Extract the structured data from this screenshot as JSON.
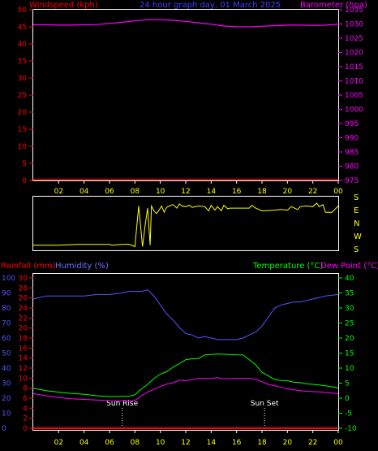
{
  "header": {
    "windspeed_label": "Windspeed (kph)",
    "title": "24 hour graph day, 01 March 2025",
    "barometer_label": "Barometer (hpa)"
  },
  "lower_header": {
    "rainfall_label": "Rainfall (mm)",
    "humidity_label": "Humidity (%)",
    "temperature_label": "Temperature (°C)",
    "dewpoint_label": "Dew Point (°C)"
  },
  "colors": {
    "background": "#000000",
    "frame": "#ffffff",
    "windspeed": "#ff0000",
    "barometer": "#ff00ff",
    "wind_direction": "#ffff00",
    "rainfall": "#ff0000",
    "humidity": "#5555ff",
    "temperature": "#00ff00",
    "dewpoint": "#ff00ff",
    "hour_labels": "#ffff00",
    "markers": "#ffffff"
  },
  "chart_data": [
    {
      "id": "wind-baro",
      "type": "line",
      "xlabel": "",
      "x_ticks": [
        "02",
        "04",
        "06",
        "08",
        "10",
        "12",
        "14",
        "16",
        "18",
        "20",
        "22",
        "00"
      ],
      "xlim_hours": [
        0,
        24
      ],
      "left_axis": {
        "label": "Windspeed (kph)",
        "ylim": [
          0,
          50
        ],
        "ticks": [
          0,
          5,
          10,
          15,
          20,
          25,
          30,
          35,
          40,
          45,
          50
        ]
      },
      "right_axis": {
        "label": "Barometer (hpa)",
        "ylim": [
          975,
          1035
        ],
        "ticks": [
          975,
          980,
          985,
          990,
          995,
          1000,
          1005,
          1010,
          1015,
          1020,
          1025,
          1030,
          1035
        ]
      },
      "series": [
        {
          "name": "Windspeed (kph)",
          "axis": "left",
          "x": [
            0,
            24
          ],
          "values": [
            0,
            0
          ]
        },
        {
          "name": "Barometer (hpa)",
          "axis": "right",
          "x": [
            0,
            1,
            2,
            3,
            4,
            5,
            6,
            7,
            8,
            9,
            10,
            11,
            12,
            13,
            14,
            15,
            16,
            17,
            18,
            19,
            20,
            21,
            22,
            23,
            24
          ],
          "values": [
            1029.7,
            1029.7,
            1029.6,
            1029.6,
            1029.7,
            1029.8,
            1030.2,
            1030.6,
            1031.1,
            1031.5,
            1031.5,
            1031.3,
            1030.9,
            1030.4,
            1029.9,
            1029.3,
            1029.0,
            1029.0,
            1029.2,
            1029.4,
            1029.6,
            1029.6,
            1029.5,
            1029.6,
            1029.9
          ]
        }
      ]
    },
    {
      "id": "wind-direction",
      "type": "line",
      "xlim_hours": [
        0,
        24
      ],
      "direction_labels": [
        "S",
        "E",
        "N",
        "W",
        "S"
      ],
      "y_order_top_to_bottom": [
        "S",
        "E",
        "N",
        "W",
        "S"
      ],
      "series": [
        {
          "name": "Wind direction (deg)",
          "x": [
            0,
            2,
            3.5,
            5,
            6,
            6.2,
            7,
            7.5,
            8,
            8.3,
            8.6,
            8.8,
            9.0,
            9.1,
            9.2,
            9.3,
            9.5,
            9.7,
            9.9,
            10.1,
            10.3,
            10.5,
            10.7,
            11,
            11.3,
            11.5,
            11.7,
            12,
            12.3,
            12.5,
            13,
            13.5,
            13.8,
            14,
            14.3,
            14.5,
            14.8,
            15,
            15.3,
            15.5,
            16,
            16.5,
            17,
            17.2,
            17.5,
            18,
            19,
            19.5,
            20,
            20.3,
            20.8,
            21,
            21.5,
            22,
            22.3,
            22.5,
            22.8,
            23,
            23.5,
            24
          ],
          "values": [
            205,
            205,
            210,
            210,
            210,
            205,
            210,
            212,
            195,
            125,
            195,
            345,
            110,
            330,
            205,
            125,
            90,
            70,
            95,
            125,
            80,
            115,
            125,
            135,
            110,
            140,
            125,
            120,
            130,
            115,
            125,
            120,
            90,
            130,
            95,
            120,
            90,
            130,
            105,
            110,
            110,
            110,
            110,
            130,
            110,
            90,
            95,
            100,
            95,
            120,
            100,
            120,
            125,
            120,
            145,
            120,
            135,
            80,
            80,
            125
          ]
        }
      ]
    },
    {
      "id": "rain-hum-temp",
      "type": "line",
      "x_ticks": [
        "02",
        "04",
        "06",
        "08",
        "10",
        "12",
        "14",
        "16",
        "18",
        "20",
        "22",
        "00"
      ],
      "xlim_hours": [
        0,
        24
      ],
      "humidity_axis": {
        "label": "Humidity (%)",
        "ylim": [
          0,
          100
        ],
        "ticks": [
          0,
          10,
          20,
          30,
          40,
          50,
          60,
          70,
          80,
          90,
          100
        ]
      },
      "rainfall_axis": {
        "label": "Rainfall (mm)",
        "ylim": [
          0,
          30
        ],
        "ticks": [
          0,
          2,
          4,
          6,
          8,
          10,
          12,
          14,
          16,
          18,
          20,
          22,
          24,
          26,
          28,
          30
        ]
      },
      "temperature_axis": {
        "label": "Temperature (°C)",
        "ylim": [
          -10,
          40
        ],
        "ticks": [
          -10,
          -5,
          0,
          5,
          10,
          15,
          20,
          25,
          30,
          35,
          40
        ]
      },
      "markers": [
        {
          "label": "Sun Rise",
          "hour": 7.0
        },
        {
          "label": "Sun Set",
          "hour": 18.2
        }
      ],
      "series": [
        {
          "name": "Rainfall (mm)",
          "axis": "rainfall",
          "x": [
            0,
            24
          ],
          "values": [
            0,
            0
          ]
        },
        {
          "name": "Humidity (%)",
          "axis": "humidity",
          "x": [
            0,
            1,
            2,
            3,
            4,
            5,
            6,
            7,
            7.5,
            8,
            8.5,
            9,
            9.5,
            10,
            10.5,
            11,
            11.5,
            12,
            12.5,
            13,
            13.5,
            14,
            14.5,
            15,
            15.5,
            16,
            16.5,
            17,
            17.5,
            18,
            18.5,
            19,
            19.5,
            20,
            20.5,
            21,
            21.5,
            22,
            22.5,
            23,
            24
          ],
          "values": [
            86,
            88,
            88,
            88,
            88,
            89,
            89,
            90,
            91,
            91,
            91,
            92,
            88,
            82,
            76,
            72,
            67,
            63,
            62,
            60,
            61,
            60,
            59,
            59,
            59,
            59,
            60,
            62,
            64,
            68,
            74,
            80,
            82,
            83,
            84,
            84,
            85,
            86,
            87,
            88,
            89
          ]
        },
        {
          "name": "Temperature (°C)",
          "axis": "temperature",
          "x": [
            0,
            1,
            2,
            3,
            4,
            5,
            6,
            7,
            7.5,
            8,
            8.5,
            9,
            9.5,
            10,
            10.5,
            11,
            11.5,
            12,
            12.5,
            13,
            13.5,
            14,
            14.5,
            15,
            15.5,
            16,
            16.5,
            17,
            17.5,
            18,
            18.5,
            19,
            19.5,
            20,
            20.5,
            21,
            21.5,
            22,
            22.5,
            23,
            24
          ],
          "values": [
            3.3,
            2.5,
            2.0,
            1.6,
            1.3,
            0.8,
            0.5,
            0.6,
            0.6,
            1.1,
            3.0,
            4.6,
            6.5,
            8.0,
            8.8,
            10.3,
            11.5,
            12.8,
            13.1,
            13.2,
            14.4,
            14.5,
            14.7,
            14.6,
            14.5,
            14.4,
            14.4,
            12.8,
            11.1,
            8.6,
            7.4,
            6.2,
            5.9,
            5.8,
            5.3,
            5.2,
            4.8,
            4.6,
            4.4,
            4.1,
            3.4
          ]
        },
        {
          "name": "Dew Point (°C)",
          "axis": "temperature",
          "x": [
            0,
            1,
            2,
            3,
            4,
            5,
            6,
            7,
            7.5,
            8,
            8.5,
            9,
            9.5,
            10,
            10.5,
            11,
            11.5,
            12,
            12.5,
            13,
            13.5,
            14,
            14.5,
            15,
            15.5,
            16,
            16.5,
            17,
            17.5,
            18,
            18.5,
            19,
            19.5,
            20,
            20.5,
            21,
            21.5,
            22,
            22.5,
            23,
            24
          ],
          "values": [
            1.5,
            0.8,
            0.2,
            -0.2,
            -0.4,
            -0.6,
            -0.8,
            -0.9,
            -0.9,
            -0.7,
            0.8,
            2.0,
            3.0,
            3.9,
            4.7,
            5.1,
            6.0,
            5.8,
            6.2,
            6.6,
            6.5,
            6.6,
            6.8,
            6.4,
            6.5,
            6.6,
            6.6,
            6.6,
            6.3,
            5.5,
            4.6,
            4.1,
            3.6,
            3.1,
            2.8,
            2.5,
            2.3,
            2.2,
            2.1,
            1.9,
            1.5
          ]
        }
      ]
    }
  ]
}
